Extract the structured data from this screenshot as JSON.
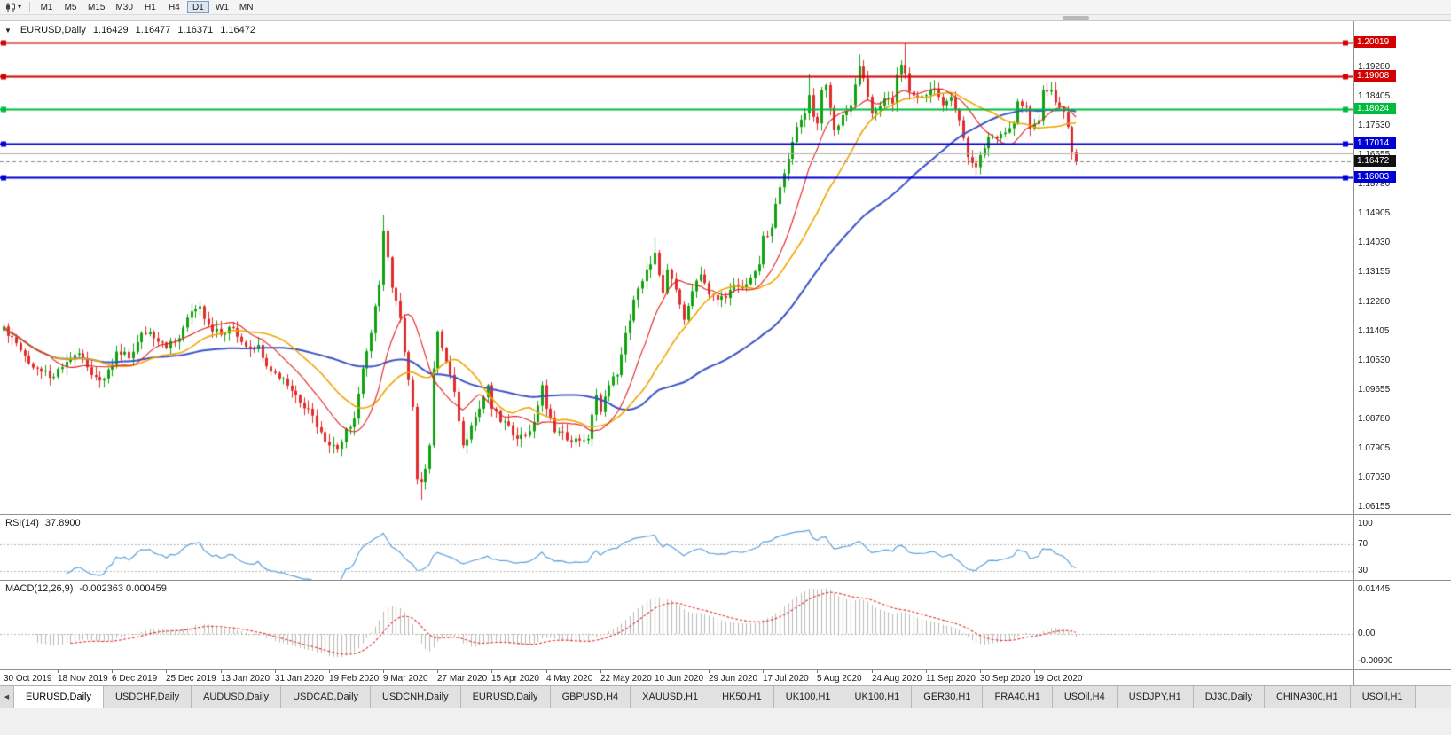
{
  "colors": {
    "up": "#12a110",
    "down": "#e02c2c",
    "ma_fast": "#e02020",
    "ma_mid": "#f0a500",
    "ma_slow": "#3b53c4",
    "rsi_line": "#5aa0dc",
    "indicator_level": "#b4b4b4",
    "macd_hist": "#b8b8b8",
    "macd_signal": "#e03030",
    "current_line": "#8a8a8a",
    "current_badge": "#111111",
    "axis_text": "#1a1a1a"
  },
  "icons": {
    "chart_type_icon": "candlestick-chart",
    "dropdown_caret": "▾",
    "collapse_icon": "▼",
    "tab_scroll_left": "◀"
  },
  "toolbar": {
    "timeframes": [
      "M1",
      "M5",
      "M15",
      "M30",
      "H1",
      "H4",
      "D1",
      "W1",
      "MN"
    ],
    "active_timeframe": "D1"
  },
  "chart_header": {
    "collapse_icon": "▼",
    "symbol": "EURUSD,Daily",
    "open": "1.16429",
    "high": "1.16477",
    "low": "1.16371",
    "close": "1.16472"
  },
  "price_axis": {
    "ticks": [
      "1.19280",
      "1.18405",
      "1.17530",
      "1.16655",
      "1.15780",
      "1.14905",
      "1.14030",
      "1.13155",
      "1.12280",
      "1.11405",
      "1.10530",
      "1.09655",
      "1.08780",
      "1.07905",
      "1.07030",
      "1.06155"
    ]
  },
  "levels": [
    {
      "value": 1.20019,
      "label": "1.20019",
      "color": "#d40000",
      "width": 2,
      "badge": true
    },
    {
      "value": 1.19008,
      "label": "1.19008",
      "color": "#d40000",
      "width": 2,
      "badge": true
    },
    {
      "value": 1.18024,
      "label": "1.18024",
      "color": "#00bc3c",
      "width": 2,
      "badge": true
    },
    {
      "value": 1.17014,
      "label": "1.17014",
      "color": "#0000d4",
      "width": 2,
      "badge": true
    },
    {
      "value": 1.167,
      "label": "",
      "color": "#b0b0b0",
      "width": 1,
      "badge": false
    },
    {
      "value": 1.16003,
      "label": "1.16003",
      "color": "#0000d4",
      "width": 2,
      "badge": true
    }
  ],
  "current_price": {
    "label": "1.16472",
    "value": 1.16472
  },
  "rsi_panel": {
    "label": "RSI(14)",
    "value": "37.8900",
    "axis": [
      {
        "label": "100",
        "value": 100
      },
      {
        "label": "70",
        "value": 70
      },
      {
        "label": "30",
        "value": 30
      }
    ],
    "level_lines": [
      70,
      30
    ],
    "range": [
      0,
      100
    ]
  },
  "macd_panel": {
    "label": "MACD(12,26,9)",
    "values": "-0.002363 0.000459",
    "axis": [
      {
        "label": "0.01445",
        "value": 0.01445
      },
      {
        "label": "0.00",
        "value": 0
      },
      {
        "label": "-0.00900",
        "value": -0.009
      }
    ]
  },
  "date_axis": {
    "labels": [
      "30 Oct 2019",
      "18 Nov 2019",
      "6 Dec 2019",
      "25 Dec 2019",
      "13 Jan 2020",
      "31 Jan 2020",
      "19 Feb 2020",
      "9 Mar 2020",
      "27 Mar 2020",
      "15 Apr 2020",
      "4 May 2020",
      "22 May 2020",
      "10 Jun 2020",
      "29 Jun 2020",
      "17 Jul 2020",
      "5 Aug 2020",
      "24 Aug 2020",
      "11 Sep 2020",
      "30 Sep 2020",
      "19 Oct 2020"
    ],
    "bar_step": 13
  },
  "tabs": {
    "active_index": 0,
    "items": [
      "EURUSD,Daily",
      "USDCHF,Daily",
      "AUDUSD,Daily",
      "USDCAD,Daily",
      "USDCNH,Daily",
      "EURUSD,Daily",
      "GBPUSD,H4",
      "XAUUSD,H1",
      "HK50,H1",
      "UK100,H1",
      "UK100,H1",
      "GER30,H1",
      "FRA40,H1",
      "USOil,H4",
      "USDJPY,H1",
      "DJ30,Daily",
      "CHINA300,H1",
      "USOil,H1"
    ]
  },
  "chart_data": {
    "type": "candlestick",
    "symbol": "EURUSD",
    "timeframe": "Daily",
    "bars": 258,
    "price_range": [
      1.0595,
      1.2065
    ],
    "current_ohlc": {
      "open": 1.16429,
      "high": 1.16477,
      "low": 1.16371,
      "close": 1.16472
    },
    "close_anchors": [
      [
        0,
        1.1155
      ],
      [
        3,
        1.1105
      ],
      [
        6,
        1.1045
      ],
      [
        9,
        1.102
      ],
      [
        12,
        1.1005
      ],
      [
        15,
        1.105
      ],
      [
        18,
        1.1075
      ],
      [
        21,
        1.101
      ],
      [
        24,
        1.1
      ],
      [
        27,
        1.108
      ],
      [
        30,
        1.106
      ],
      [
        33,
        1.1135
      ],
      [
        36,
        1.112
      ],
      [
        39,
        1.109
      ],
      [
        42,
        1.112
      ],
      [
        45,
        1.12
      ],
      [
        47,
        1.1215
      ],
      [
        49,
        1.116
      ],
      [
        52,
        1.113
      ],
      [
        55,
        1.115
      ],
      [
        58,
        1.1095
      ],
      [
        61,
        1.11
      ],
      [
        64,
        1.102
      ],
      [
        67,
        1.1
      ],
      [
        70,
        1.095
      ],
      [
        73,
        1.091
      ],
      [
        76,
        1.084
      ],
      [
        78,
        1.08
      ],
      [
        80,
        1.079
      ],
      [
        82,
        1.085
      ],
      [
        84,
        1.088
      ],
      [
        86,
        1.103
      ],
      [
        88,
        1.1135
      ],
      [
        90,
        1.128
      ],
      [
        91,
        1.144
      ],
      [
        93,
        1.127
      ],
      [
        95,
        1.118
      ],
      [
        97,
        1.0995
      ],
      [
        98,
        1.0915
      ],
      [
        99,
        1.07
      ],
      [
        100,
        1.069
      ],
      [
        101,
        1.073
      ],
      [
        102,
        1.08
      ],
      [
        103,
        1.103
      ],
      [
        104,
        1.114
      ],
      [
        106,
        1.105
      ],
      [
        108,
        1.096
      ],
      [
        110,
        1.08
      ],
      [
        112,
        1.086
      ],
      [
        114,
        1.091
      ],
      [
        116,
        1.098
      ],
      [
        117,
        1.091
      ],
      [
        119,
        1.087
      ],
      [
        121,
        1.086
      ],
      [
        123,
        1.082
      ],
      [
        125,
        1.083
      ],
      [
        127,
        1.087
      ],
      [
        129,
        1.098
      ],
      [
        130,
        1.091
      ],
      [
        132,
        1.084
      ],
      [
        134,
        1.084
      ],
      [
        136,
        1.081
      ],
      [
        138,
        1.0815
      ],
      [
        140,
        1.082
      ],
      [
        142,
        1.095
      ],
      [
        143,
        1.09
      ],
      [
        145,
        1.098
      ],
      [
        147,
        1.101
      ],
      [
        149,
        1.1135
      ],
      [
        151,
        1.1235
      ],
      [
        153,
        1.129
      ],
      [
        155,
        1.134
      ],
      [
        156,
        1.1375
      ],
      [
        158,
        1.1255
      ],
      [
        159,
        1.1325
      ],
      [
        161,
        1.1265
      ],
      [
        163,
        1.1175
      ],
      [
        165,
        1.126
      ],
      [
        167,
        1.131
      ],
      [
        169,
        1.125
      ],
      [
        171,
        1.1235
      ],
      [
        173,
        1.124
      ],
      [
        175,
        1.128
      ],
      [
        177,
        1.127
      ],
      [
        179,
        1.13
      ],
      [
        181,
        1.134
      ],
      [
        182,
        1.1425
      ],
      [
        184,
        1.145
      ],
      [
        186,
        1.157
      ],
      [
        188,
        1.1655
      ],
      [
        190,
        1.175
      ],
      [
        192,
        1.179
      ],
      [
        193,
        1.1845
      ],
      [
        194,
        1.178
      ],
      [
        195,
        1.176
      ],
      [
        196,
        1.186
      ],
      [
        197,
        1.1875
      ],
      [
        199,
        1.174
      ],
      [
        201,
        1.1785
      ],
      [
        203,
        1.1815
      ],
      [
        205,
        1.193
      ],
      [
        207,
        1.184
      ],
      [
        208,
        1.179
      ],
      [
        211,
        1.1835
      ],
      [
        213,
        1.182
      ],
      [
        214,
        1.1905
      ],
      [
        215,
        1.1935
      ],
      [
        216,
        1.191
      ],
      [
        217,
        1.1855
      ],
      [
        219,
        1.184
      ],
      [
        221,
        1.1845
      ],
      [
        223,
        1.1865
      ],
      [
        225,
        1.1815
      ],
      [
        227,
        1.184
      ],
      [
        229,
        1.177
      ],
      [
        231,
        1.166
      ],
      [
        233,
        1.163
      ],
      [
        234,
        1.1666
      ],
      [
        236,
        1.172
      ],
      [
        238,
        1.1716
      ],
      [
        240,
        1.1733
      ],
      [
        242,
        1.176
      ],
      [
        243,
        1.1826
      ],
      [
        245,
        1.181
      ],
      [
        246,
        1.1745
      ],
      [
        248,
        1.177
      ],
      [
        249,
        1.186
      ],
      [
        251,
        1.186
      ],
      [
        253,
        1.181
      ],
      [
        254,
        1.1795
      ],
      [
        255,
        1.175
      ],
      [
        256,
        1.1674
      ],
      [
        257,
        1.16472
      ]
    ],
    "extremes": [
      {
        "i": 78,
        "low": 1.0778
      },
      {
        "i": 91,
        "high": 1.1488
      },
      {
        "i": 100,
        "low": 1.0637
      },
      {
        "i": 156,
        "high": 1.1422
      },
      {
        "i": 193,
        "high": 1.1909
      },
      {
        "i": 205,
        "high": 1.1966
      },
      {
        "i": 216,
        "high": 1.2001
      },
      {
        "i": 233,
        "low": 1.1612
      }
    ],
    "moving_averages": [
      {
        "name": "MA fast",
        "period": 12,
        "color": "#e02020"
      },
      {
        "name": "MA mid",
        "period": 24,
        "color": "#f0a500"
      },
      {
        "name": "MA slow",
        "period": 55,
        "color": "#3b53c4"
      }
    ],
    "indicators": [
      {
        "name": "RSI",
        "period": 14,
        "last": 37.89,
        "levels": [
          30,
          70
        ]
      },
      {
        "name": "MACD",
        "fast": 12,
        "slow": 26,
        "signal": 9,
        "last_macd": -0.002363,
        "last_signal": 0.000459
      }
    ]
  }
}
